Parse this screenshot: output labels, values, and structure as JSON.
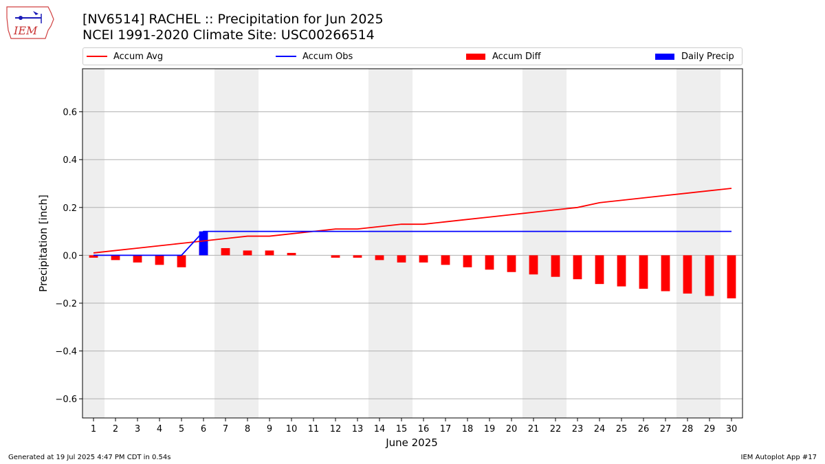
{
  "header": {
    "title": "[NV6514] RACHEL :: Precipitation for Jun 2025",
    "subtitle": "NCEI 1991-2020 Climate Site: USC00266514"
  },
  "logo": {
    "text": "IEM"
  },
  "legend": [
    {
      "label": "Accum Avg",
      "kind": "line",
      "color": "#ff0000"
    },
    {
      "label": "Accum Obs",
      "kind": "line",
      "color": "#0000ff"
    },
    {
      "label": "Accum Diff",
      "kind": "box",
      "color": "#ff0000"
    },
    {
      "label": "Daily Precip",
      "kind": "box",
      "color": "#0000ff"
    }
  ],
  "footer": {
    "left": "Generated at 19 Jul 2025 4:47 PM CDT in 0.54s",
    "right": "IEM Autoplot App #17"
  },
  "chart_data": {
    "type": "bar",
    "title": "[NV6514] RACHEL :: Precipitation for Jun 2025",
    "xlabel": "June 2025",
    "ylabel": "Precipitation [inch]",
    "ylim": [
      -0.68,
      0.78
    ],
    "yticks": [
      -0.6,
      -0.4,
      -0.2,
      0.0,
      0.2,
      0.4,
      0.6
    ],
    "ytick_labels": [
      "−0.6",
      "−0.4",
      "−0.2",
      "0.0",
      "0.2",
      "0.4",
      "0.6"
    ],
    "grid": true,
    "legend_position": "top",
    "x": [
      1,
      2,
      3,
      4,
      5,
      6,
      7,
      8,
      9,
      10,
      11,
      12,
      13,
      14,
      15,
      16,
      17,
      18,
      19,
      20,
      21,
      22,
      23,
      24,
      25,
      26,
      27,
      28,
      29,
      30
    ],
    "weekend_shading": [
      [
        1,
        1
      ],
      [
        7,
        8
      ],
      [
        14,
        15
      ],
      [
        21,
        22
      ],
      [
        28,
        29
      ]
    ],
    "series": [
      {
        "name": "Accum Avg",
        "type": "line",
        "color": "#ff0000",
        "values": [
          0.01,
          0.02,
          0.03,
          0.04,
          0.05,
          0.06,
          0.07,
          0.08,
          0.08,
          0.09,
          0.1,
          0.11,
          0.11,
          0.12,
          0.13,
          0.13,
          0.14,
          0.15,
          0.16,
          0.17,
          0.18,
          0.19,
          0.2,
          0.22,
          0.23,
          0.24,
          0.25,
          0.26,
          0.27,
          0.28
        ]
      },
      {
        "name": "Accum Obs",
        "type": "line",
        "color": "#0000ff",
        "values": [
          0.0,
          0.0,
          0.0,
          0.0,
          0.0,
          0.1,
          0.1,
          0.1,
          0.1,
          0.1,
          0.1,
          0.1,
          0.1,
          0.1,
          0.1,
          0.1,
          0.1,
          0.1,
          0.1,
          0.1,
          0.1,
          0.1,
          0.1,
          0.1,
          0.1,
          0.1,
          0.1,
          0.1,
          0.1,
          0.1
        ]
      },
      {
        "name": "Accum Diff",
        "type": "bar",
        "color": "#ff0000",
        "values": [
          -0.01,
          -0.02,
          -0.03,
          -0.04,
          -0.05,
          0.04,
          0.03,
          0.02,
          0.02,
          0.01,
          0.0,
          -0.01,
          -0.01,
          -0.02,
          -0.03,
          -0.03,
          -0.04,
          -0.05,
          -0.06,
          -0.07,
          -0.08,
          -0.09,
          -0.1,
          -0.12,
          -0.13,
          -0.14,
          -0.15,
          -0.16,
          -0.17,
          -0.18
        ]
      },
      {
        "name": "Daily Precip",
        "type": "bar",
        "color": "#0000ff",
        "values": [
          0,
          0,
          0,
          0,
          0,
          0.1,
          0,
          0,
          0,
          0,
          0,
          0,
          0,
          0,
          0,
          0,
          0,
          0,
          0,
          0,
          0,
          0,
          0,
          0,
          0,
          0,
          0,
          0,
          0,
          0
        ]
      }
    ]
  }
}
